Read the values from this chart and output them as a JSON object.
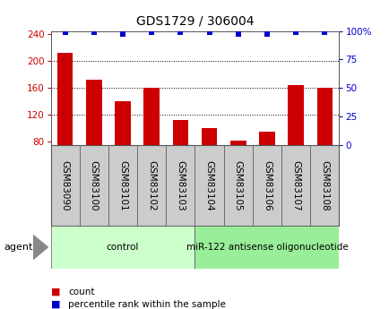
{
  "title": "GDS1729 / 306004",
  "samples": [
    "GSM83090",
    "GSM83100",
    "GSM83101",
    "GSM83102",
    "GSM83103",
    "GSM83104",
    "GSM83105",
    "GSM83106",
    "GSM83107",
    "GSM83108"
  ],
  "counts": [
    213,
    172,
    140,
    160,
    113,
    100,
    82,
    95,
    165,
    160
  ],
  "percentile_ranks": [
    99,
    99,
    97,
    99,
    99,
    99,
    97,
    97,
    99,
    99
  ],
  "bar_color": "#cc0000",
  "dot_color": "#0000cc",
  "ylim_left": [
    75,
    245
  ],
  "ylim_right": [
    0,
    100
  ],
  "yticks_left": [
    80,
    120,
    160,
    200,
    240
  ],
  "yticks_right": [
    0,
    25,
    50,
    75,
    100
  ],
  "gridlines_at": [
    120,
    160,
    200
  ],
  "groups": [
    {
      "label": "control",
      "start": 0,
      "end": 5,
      "color": "#ccffcc"
    },
    {
      "label": "miR-122 antisense oligonucleotide",
      "start": 5,
      "end": 10,
      "color": "#99ee99"
    }
  ],
  "agent_label": "agent",
  "legend_items": [
    {
      "color": "#cc0000",
      "label": "count"
    },
    {
      "color": "#0000cc",
      "label": "percentile rank within the sample"
    }
  ],
  "bg_color": "#ffffff",
  "tick_label_bg": "#cccccc",
  "border_color": "#555555",
  "title_fontsize": 10,
  "tick_fontsize": 7.5,
  "label_fontsize": 7.5,
  "group_fontsize": 7.5,
  "legend_fontsize": 7.5
}
